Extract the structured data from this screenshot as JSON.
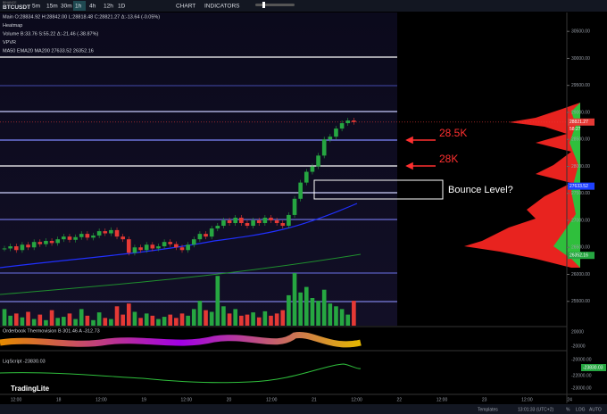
{
  "toolbar": {
    "exchange": "BINANCE",
    "symbol": "BTCUSDT",
    "intervals": [
      "5m",
      "15m",
      "30m",
      "1h",
      "4h",
      "12h",
      "1D"
    ],
    "active_interval": "1h",
    "buttons": [
      "CHART",
      "INDICATORS"
    ]
  },
  "legend": [
    "Main  O:28834.92 H:28842.00 L:28818.48 C:28821.27 Δ:-13.64 (-0.05%)",
    "Heatmap",
    "Volume  B:33.76 S:55.22 Δ:-21.46 (-38.87%)",
    "VPVR",
    "MA50 EMA20 MA200  27633.52  26352.16"
  ],
  "annotations": {
    "arrow_1": "28.5K",
    "arrow_2": "28K",
    "box": "Bounce Level?"
  },
  "price_axis": {
    "ylim": [
      25050,
      30850
    ],
    "ticks": [
      {
        "value": 30500,
        "label": "30500.00"
      },
      {
        "value": 30000,
        "label": "30000.00"
      },
      {
        "value": 29500,
        "label": "29500.00"
      },
      {
        "value": 29000,
        "label": "29000.00"
      },
      {
        "value": 28500,
        "label": "28500.00"
      },
      {
        "value": 28000,
        "label": "28000.00"
      },
      {
        "value": 27500,
        "label": "27500.00"
      },
      {
        "value": 27000,
        "label": "27000.00"
      },
      {
        "value": 26500,
        "label": "26500.00"
      },
      {
        "value": 26000,
        "label": "26000.00"
      },
      {
        "value": 25500,
        "label": "25500.00"
      }
    ],
    "markers": [
      {
        "value": 28821.27,
        "label": "28821.27",
        "color": "#e53935"
      },
      {
        "value": 27633.52,
        "label": "27633.52",
        "color": "#1e40ff"
      },
      {
        "value": 26352.16,
        "label": "26352.16",
        "color": "#26a641"
      }
    ],
    "countdown": "58:27"
  },
  "time_axis": [
    "12:00",
    "18",
    "12:00",
    "19",
    "12:00",
    "20",
    "12:00",
    "21",
    "12:00",
    "22",
    "12:00",
    "23",
    "12:00",
    "24"
  ],
  "closes": [
    26480,
    26520,
    26450,
    26550,
    26500,
    26600,
    26560,
    26620,
    26580,
    26650,
    26700,
    26640,
    26690,
    26750,
    26680,
    26720,
    26800,
    26760,
    26820,
    26700,
    26650,
    26400,
    26500,
    26450,
    26550,
    26480,
    26520,
    26600,
    26560,
    26500,
    26450,
    26550,
    26650,
    26750,
    26700,
    26850,
    26900,
    27000,
    26950,
    27050,
    26950,
    26900,
    27000,
    26950,
    27050,
    27000,
    26950,
    26900,
    27100,
    27400,
    27700,
    27900,
    28000,
    28200,
    28500,
    28550,
    28700,
    28800,
    28850,
    28821.27
  ],
  "volume_lim": [
    0,
    100
  ],
  "volumes": [
    30,
    18,
    22,
    15,
    25,
    12,
    20,
    10,
    28,
    14,
    16,
    22,
    12,
    30,
    18,
    10,
    24,
    14,
    12,
    35,
    20,
    40,
    25,
    14,
    22,
    18,
    12,
    16,
    20,
    14,
    22,
    18,
    30,
    45,
    28,
    25,
    90,
    35,
    22,
    30,
    18,
    20,
    24,
    15,
    26,
    18,
    22,
    28,
    55,
    95,
    60,
    70,
    50,
    45,
    65,
    40,
    35,
    30,
    20,
    45
  ],
  "panes": {
    "thermo": "Orderbook Thermovision  B 301.46  A -312.73",
    "thermo_ticks": [
      "20000",
      "-20000"
    ],
    "liq": "LiqScript  -23830.03",
    "liq_ticks": [
      "-20000.00",
      "-22000.00",
      "-23000.00"
    ],
    "liq_marker": "-23830.03"
  },
  "logo": "TradingLite",
  "footer": {
    "templates": "Templates",
    "clock": "13:01:33 (UTC+2)",
    "percent": "%",
    "log": "LOG",
    "auto": "AUTO"
  }
}
